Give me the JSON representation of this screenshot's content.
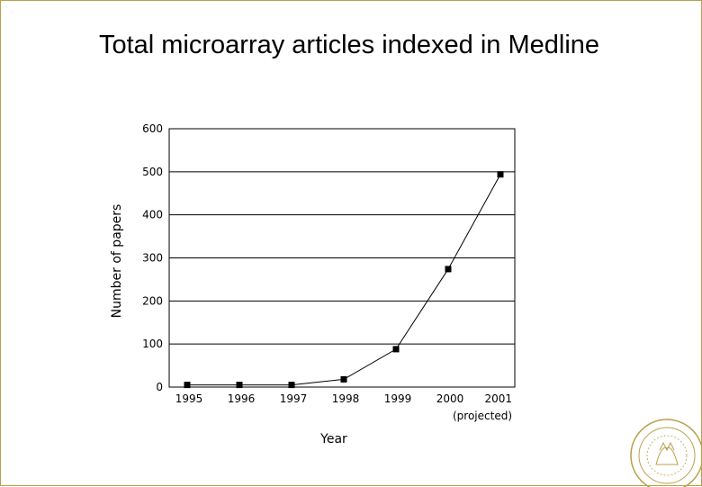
{
  "slide": {
    "title": "Total microarray articles indexed in Medline"
  },
  "chart_data": {
    "type": "line",
    "categories": [
      "1995",
      "1996",
      "1997",
      "1998",
      "1999",
      "2000",
      "2001"
    ],
    "category_sublabels": [
      "",
      "",
      "",
      "",
      "",
      "",
      "(projected)"
    ],
    "values": [
      5,
      5,
      5,
      18,
      88,
      274,
      494
    ],
    "xlabel": "Year",
    "ylabel": "Number of papers",
    "ylim": [
      0,
      600
    ],
    "yticks": [
      0,
      100,
      200,
      300,
      400,
      500,
      600
    ],
    "grid": true,
    "marker": "square",
    "line_color": "#000000",
    "legend": "none"
  },
  "logo": {
    "icon": "university-seal-icon",
    "color": "#b8a04a"
  }
}
